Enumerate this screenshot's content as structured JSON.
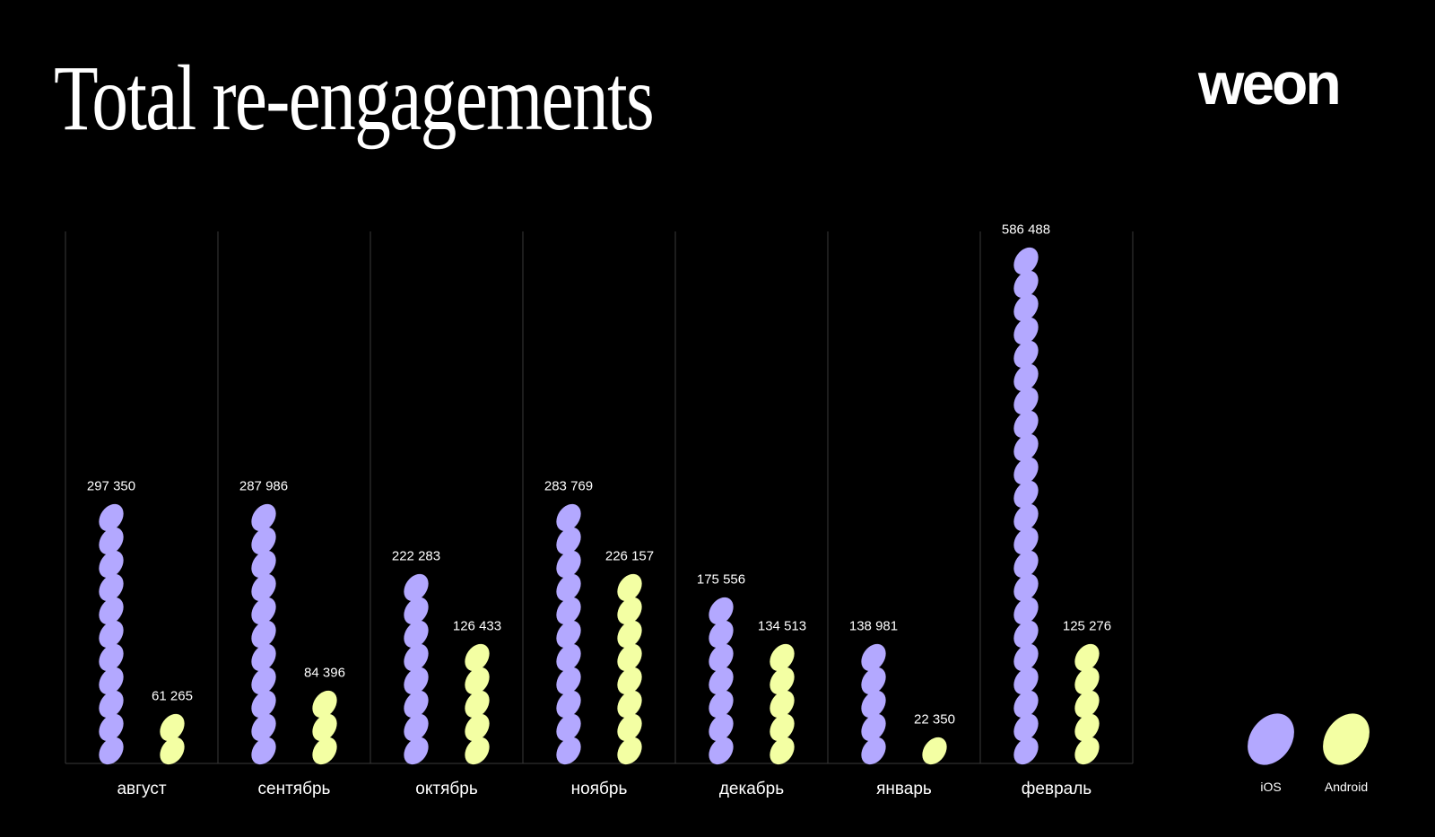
{
  "header": {
    "title": "Total re-engagements",
    "logo": "weon"
  },
  "colors": {
    "background": "#000000",
    "ios": "#b3a8ff",
    "android": "#f3ffa3",
    "grid": "#3a3a3a"
  },
  "chart_data": {
    "type": "bar",
    "title": "Total re-engagements",
    "xlabel": "",
    "ylabel": "",
    "grid": "vertical separators",
    "legend_position": "bottom-right",
    "categories": [
      "август",
      "сентябрь",
      "октябрь",
      "ноябрь",
      "декабрь",
      "январь",
      "февраль"
    ],
    "series": [
      {
        "name": "iOS",
        "values": [
          297350,
          287986,
          222283,
          283769,
          175556,
          138981,
          586488
        ],
        "labels": [
          "297 350",
          "287 986",
          "222 283",
          "283 769",
          "175 556",
          "138 981",
          "586 488"
        ]
      },
      {
        "name": "Android",
        "values": [
          61265,
          84396,
          126433,
          226157,
          134513,
          22350,
          125276
        ],
        "labels": [
          "61 265",
          "84 396",
          "126 433",
          "226 157",
          "134 513",
          "22 350",
          "125 276"
        ]
      }
    ],
    "units_per_mark": 27000
  }
}
